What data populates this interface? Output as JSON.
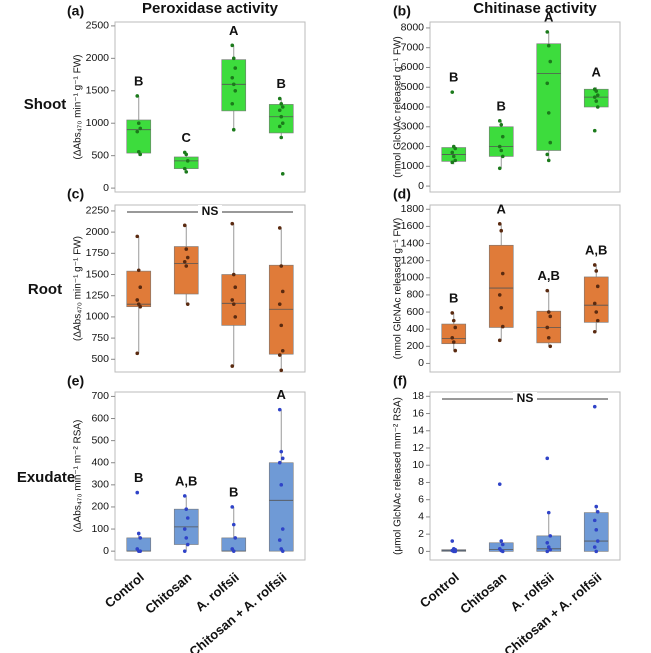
{
  "row_labels": [
    "Shoot",
    "Root",
    "Exudate"
  ],
  "chart_data": [
    {
      "type": "box",
      "panel": "(a)",
      "title": "Peroxidase activity",
      "y_label": "(ΔAbs₄₇₀ min⁻¹ g⁻¹ FW)",
      "color": "#3ddc3d",
      "point_color": "#1b7a1b",
      "ylim": [
        -60,
        2560
      ],
      "yticks": [
        0,
        500,
        1000,
        1500,
        2000,
        2500
      ],
      "boxes": [
        {
          "min": 500,
          "q1": 540,
          "median": 900,
          "q3": 1050,
          "max": 1420,
          "points": [
            1420,
            1000,
            920,
            870,
            560,
            520
          ],
          "letter": "B"
        },
        {
          "min": 250,
          "q1": 300,
          "median": 420,
          "q3": 480,
          "max": 550,
          "points": [
            550,
            520,
            420,
            300,
            250
          ],
          "letter": "C"
        },
        {
          "min": 900,
          "q1": 1190,
          "median": 1600,
          "q3": 1980,
          "max": 2200,
          "points": [
            2200,
            2000,
            1850,
            1700,
            1600,
            1500,
            1300,
            900
          ],
          "letter": "A"
        },
        {
          "min": 780,
          "q1": 850,
          "median": 1100,
          "q3": 1290,
          "max": 1380,
          "points": [
            1380,
            1300,
            1250,
            1200,
            1100,
            1000,
            950,
            780,
            220
          ],
          "letter": "B"
        }
      ]
    },
    {
      "type": "box",
      "panel": "(b)",
      "title": "Chitinase activity",
      "y_label": "(nmol GlcNAc released g⁻¹ FW)",
      "color": "#3ddc3d",
      "point_color": "#1b7a1b",
      "ylim": [
        -300,
        8300
      ],
      "yticks": [
        0,
        1000,
        2000,
        3000,
        4000,
        5000,
        6000,
        7000,
        8000
      ],
      "boxes": [
        {
          "min": 1100,
          "q1": 1250,
          "median": 1600,
          "q3": 1950,
          "max": 2000,
          "points": [
            4750,
            2000,
            1900,
            1700,
            1500,
            1300,
            1200
          ],
          "letter": "B"
        },
        {
          "min": 900,
          "q1": 1500,
          "median": 2000,
          "q3": 3000,
          "max": 3300,
          "points": [
            3300,
            3100,
            2500,
            2000,
            1800,
            1500,
            900
          ],
          "letter": "B"
        },
        {
          "min": 1300,
          "q1": 1800,
          "median": 5700,
          "q3": 7200,
          "max": 7800,
          "points": [
            7800,
            7100,
            6300,
            5200,
            3700,
            2200,
            1600,
            1300
          ],
          "letter": "A"
        },
        {
          "min": 4000,
          "q1": 4000,
          "median": 4500,
          "q3": 4900,
          "max": 5000,
          "points": [
            4900,
            4800,
            4600,
            4500,
            4300,
            4000,
            2800
          ],
          "letter": "A"
        }
      ]
    },
    {
      "type": "box",
      "panel": "(c)",
      "y_label": "(ΔAbs₄₇₀ min⁻¹ g⁻¹ FW)",
      "color": "#e07b39",
      "point_color": "#5a2a10",
      "ns": "NS",
      "ylim": [
        350,
        2320
      ],
      "yticks": [
        500,
        750,
        1000,
        1250,
        1500,
        1750,
        2000,
        2250
      ],
      "boxes": [
        {
          "min": 570,
          "q1": 1120,
          "median": 1150,
          "q3": 1540,
          "max": 1950,
          "points": [
            1950,
            1550,
            1350,
            1200,
            1150,
            1120,
            570
          ]
        },
        {
          "min": 1150,
          "q1": 1270,
          "median": 1630,
          "q3": 1830,
          "max": 2080,
          "points": [
            2080,
            1800,
            1700,
            1650,
            1600,
            1150
          ]
        },
        {
          "min": 420,
          "q1": 900,
          "median": 1160,
          "q3": 1500,
          "max": 2100,
          "points": [
            2100,
            1500,
            1350,
            1200,
            1150,
            1000,
            420
          ]
        },
        {
          "min": 370,
          "q1": 560,
          "median": 1090,
          "q3": 1610,
          "max": 2050,
          "points": [
            2050,
            1600,
            1300,
            1150,
            900,
            600,
            550,
            370
          ]
        }
      ]
    },
    {
      "type": "box",
      "panel": "(d)",
      "y_label": "(nmol GlcNAc released g⁻¹ FW)",
      "color": "#e07b39",
      "point_color": "#5a2a10",
      "ylim": [
        -100,
        1850
      ],
      "yticks": [
        0,
        200,
        400,
        600,
        800,
        1000,
        1200,
        1400,
        1600,
        1800
      ],
      "boxes": [
        {
          "min": 150,
          "q1": 230,
          "median": 290,
          "q3": 460,
          "max": 590,
          "points": [
            590,
            500,
            420,
            300,
            250,
            150
          ],
          "letter": "B"
        },
        {
          "min": 270,
          "q1": 420,
          "median": 880,
          "q3": 1380,
          "max": 1630,
          "points": [
            1630,
            1550,
            1050,
            800,
            650,
            430,
            270
          ],
          "letter": "A"
        },
        {
          "min": 200,
          "q1": 240,
          "median": 420,
          "q3": 610,
          "max": 850,
          "points": [
            850,
            600,
            550,
            420,
            300,
            200
          ],
          "letter": "A,B"
        },
        {
          "min": 370,
          "q1": 480,
          "median": 680,
          "q3": 1010,
          "max": 1150,
          "points": [
            1150,
            1080,
            900,
            700,
            600,
            500,
            370
          ],
          "letter": "A,B"
        }
      ]
    },
    {
      "type": "box",
      "panel": "(e)",
      "y_label": "(ΔAbs₄₇₀ min⁻¹ m⁻² RSA)",
      "color": "#6f9ad6",
      "point_color": "#2f43c8",
      "ylim": [
        -40,
        720
      ],
      "yticks": [
        0,
        100,
        200,
        300,
        400,
        500,
        600,
        700
      ],
      "categories": [
        "Control",
        "Chitosan",
        "A. rolfsii",
        "Chitosan + A. rolfsii"
      ],
      "boxes": [
        {
          "min": 0,
          "q1": 0,
          "median": 0,
          "q3": 60,
          "max": 80,
          "points": [
            265,
            80,
            60,
            10,
            0,
            0
          ],
          "letter": "B"
        },
        {
          "min": 0,
          "q1": 30,
          "median": 110,
          "q3": 190,
          "max": 250,
          "points": [
            250,
            190,
            150,
            100,
            60,
            30,
            0
          ],
          "letter": "A,B"
        },
        {
          "min": 0,
          "q1": 0,
          "median": 0,
          "q3": 60,
          "max": 200,
          "points": [
            200,
            120,
            60,
            10,
            0
          ],
          "letter": "B"
        },
        {
          "min": 0,
          "q1": 0,
          "median": 230,
          "q3": 400,
          "max": 640,
          "points": [
            640,
            450,
            420,
            400,
            300,
            100,
            50,
            10,
            0
          ],
          "letter": "A"
        }
      ]
    },
    {
      "type": "box",
      "panel": "(f)",
      "y_label": "(μmol GlcNAc released mm⁻² RSA)",
      "color": "#6f9ad6",
      "point_color": "#2f43c8",
      "ns": "NS",
      "ylim": [
        -1,
        18.5
      ],
      "yticks": [
        0,
        2,
        4,
        6,
        8,
        10,
        12,
        14,
        16,
        18
      ],
      "categories": [
        "Control",
        "Chitosan",
        "A. rolfsii",
        "Chitosan + A. rolfsii"
      ],
      "boxes": [
        {
          "min": 0,
          "q1": 0,
          "median": 0.1,
          "q3": 0.2,
          "max": 0.3,
          "points": [
            1.2,
            0.3,
            0.2,
            0.1,
            0,
            0
          ]
        },
        {
          "min": 0,
          "q1": 0,
          "median": 0.2,
          "q3": 1,
          "max": 1.2,
          "points": [
            7.8,
            1.2,
            0.8,
            0.3,
            0.1,
            0
          ]
        },
        {
          "min": 0,
          "q1": 0,
          "median": 0.3,
          "q3": 1.8,
          "max": 4.5,
          "points": [
            10.8,
            4.5,
            1.8,
            1,
            0.5,
            0.2,
            0
          ]
        },
        {
          "min": 0,
          "q1": 0,
          "median": 1.2,
          "q3": 4.5,
          "max": 5.2,
          "points": [
            16.8,
            5.2,
            4.6,
            3.6,
            2.5,
            1.2,
            0.5,
            0
          ]
        }
      ]
    }
  ]
}
